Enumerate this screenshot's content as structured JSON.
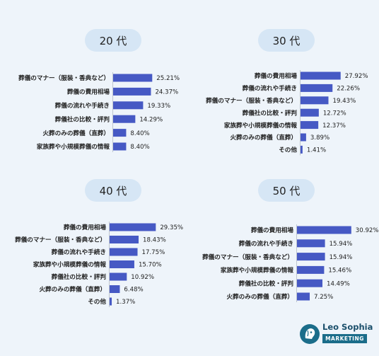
{
  "chart_data": [
    {
      "type": "bar",
      "orientation": "horizontal",
      "title": "20 代",
      "categories": [
        "葬儀のマナー（服装・香典など）",
        "葬儀の費用相場",
        "葬儀の流れや手続き",
        "葬儀社の比較・評判",
        "火葬のみの葬儀（直葬）",
        "家族葬や小規模葬儀の情報"
      ],
      "values": [
        25.21,
        24.37,
        19.33,
        14.29,
        8.4,
        8.4
      ],
      "labels": [
        "25.21%",
        "24.37%",
        "19.33%",
        "14.29%",
        "8.40%",
        "8.40%"
      ],
      "xlim": [
        0,
        32
      ],
      "grid": false,
      "color": "#4659c4"
    },
    {
      "type": "bar",
      "orientation": "horizontal",
      "title": "30 代",
      "categories": [
        "葬儀の費用相場",
        "葬儀の流れや手続き",
        "葬儀のマナー（服装・香典など）",
        "葬儀社の比較・評判",
        "家族葬や小規模葬儀の情報",
        "火葬のみの葬儀（直葬）",
        "その他"
      ],
      "values": [
        27.92,
        22.26,
        19.43,
        12.72,
        12.37,
        3.89,
        1.41
      ],
      "labels": [
        "27.92%",
        "22.26%",
        "19.43%",
        "12.72%",
        "12.37%",
        "3.89%",
        "1.41%"
      ],
      "xlim": [
        0,
        32
      ],
      "grid": false,
      "color": "#4659c4"
    },
    {
      "type": "bar",
      "orientation": "horizontal",
      "title": "40 代",
      "categories": [
        "葬儀の費用相場",
        "葬儀のマナー（服装・香典など）",
        "葬儀の流れや手続き",
        "家族葬や小規模葬儀の情報",
        "葬儀社の比較・評判",
        "火葬のみの葬儀（直葬）",
        "その他"
      ],
      "values": [
        29.35,
        18.43,
        17.75,
        15.7,
        10.92,
        6.48,
        1.37
      ],
      "labels": [
        "29.35%",
        "18.43%",
        "17.75%",
        "15.70%",
        "10.92%",
        "6.48%",
        "1.37%"
      ],
      "xlim": [
        0,
        32
      ],
      "grid": false,
      "color": "#4659c4"
    },
    {
      "type": "bar",
      "orientation": "horizontal",
      "title": "50 代",
      "categories": [
        "葬儀の費用相場",
        "葬儀の流れや手続き",
        "葬儀のマナー（服装・香典など）",
        "家族葬や小規模葬儀の情報",
        "葬儀社の比較・評判",
        "火葬のみの葬儀（直葬）"
      ],
      "values": [
        30.92,
        15.94,
        15.94,
        15.46,
        14.49,
        7.25
      ],
      "labels": [
        "30.92%",
        "15.94%",
        "15.94%",
        "15.46%",
        "14.49%",
        "7.25%"
      ],
      "xlim": [
        0,
        32
      ],
      "grid": false,
      "color": "#4659c4"
    }
  ],
  "logo": {
    "name": "Leo Sophia",
    "sub": "MARKETING",
    "icon": "lion-head-icon"
  }
}
